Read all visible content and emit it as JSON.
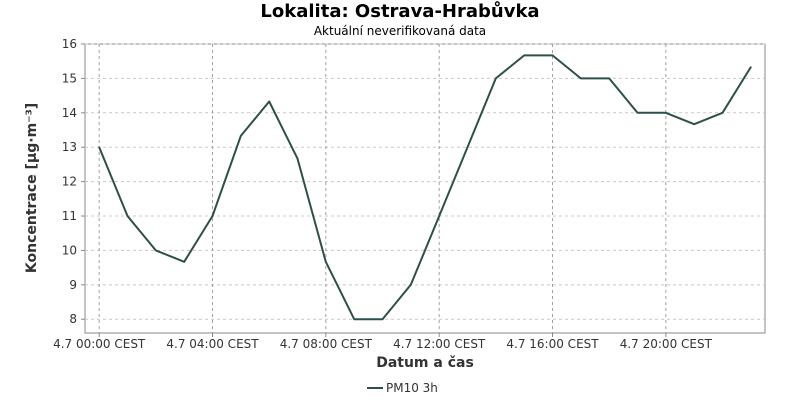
{
  "chart_data": {
    "type": "line",
    "title": "Lokalita: Ostrava-Hrabůvka",
    "subtitle": "Aktuální neverifikovaná data",
    "xlabel": "Datum a čas",
    "ylabel": "Koncentrace [µg·m⁻³]",
    "x_tick_labels": [
      "4.7 00:00 CEST",
      "4.7 04:00 CEST",
      "4.7 08:00 CEST",
      "4.7 12:00 CEST",
      "4.7 16:00 CEST",
      "4.7 20:00 CEST"
    ],
    "x_tick_hours": [
      0,
      4,
      8,
      12,
      16,
      20
    ],
    "x_range_hours": [
      -0.5,
      23.5
    ],
    "ylim": [
      7.6,
      16
    ],
    "y_ticks": [
      8,
      9,
      10,
      11,
      12,
      13,
      14,
      15,
      16
    ],
    "grid": true,
    "legend_position": "bottom",
    "series": [
      {
        "name": "PM10 3h",
        "color": "#2f4f4a",
        "x_hours": [
          0,
          1,
          2,
          3,
          4,
          5,
          6,
          7,
          8,
          9,
          10,
          11,
          12,
          13,
          14,
          15,
          16,
          17,
          18,
          19,
          20,
          21,
          22,
          23
        ],
        "values": [
          13,
          11,
          10,
          9.67,
          11,
          13.33,
          14.33,
          12.67,
          9.67,
          8,
          8,
          9,
          11,
          13,
          15,
          15.67,
          15.67,
          15,
          15,
          14,
          14,
          13.67,
          14,
          15.33
        ]
      }
    ]
  }
}
